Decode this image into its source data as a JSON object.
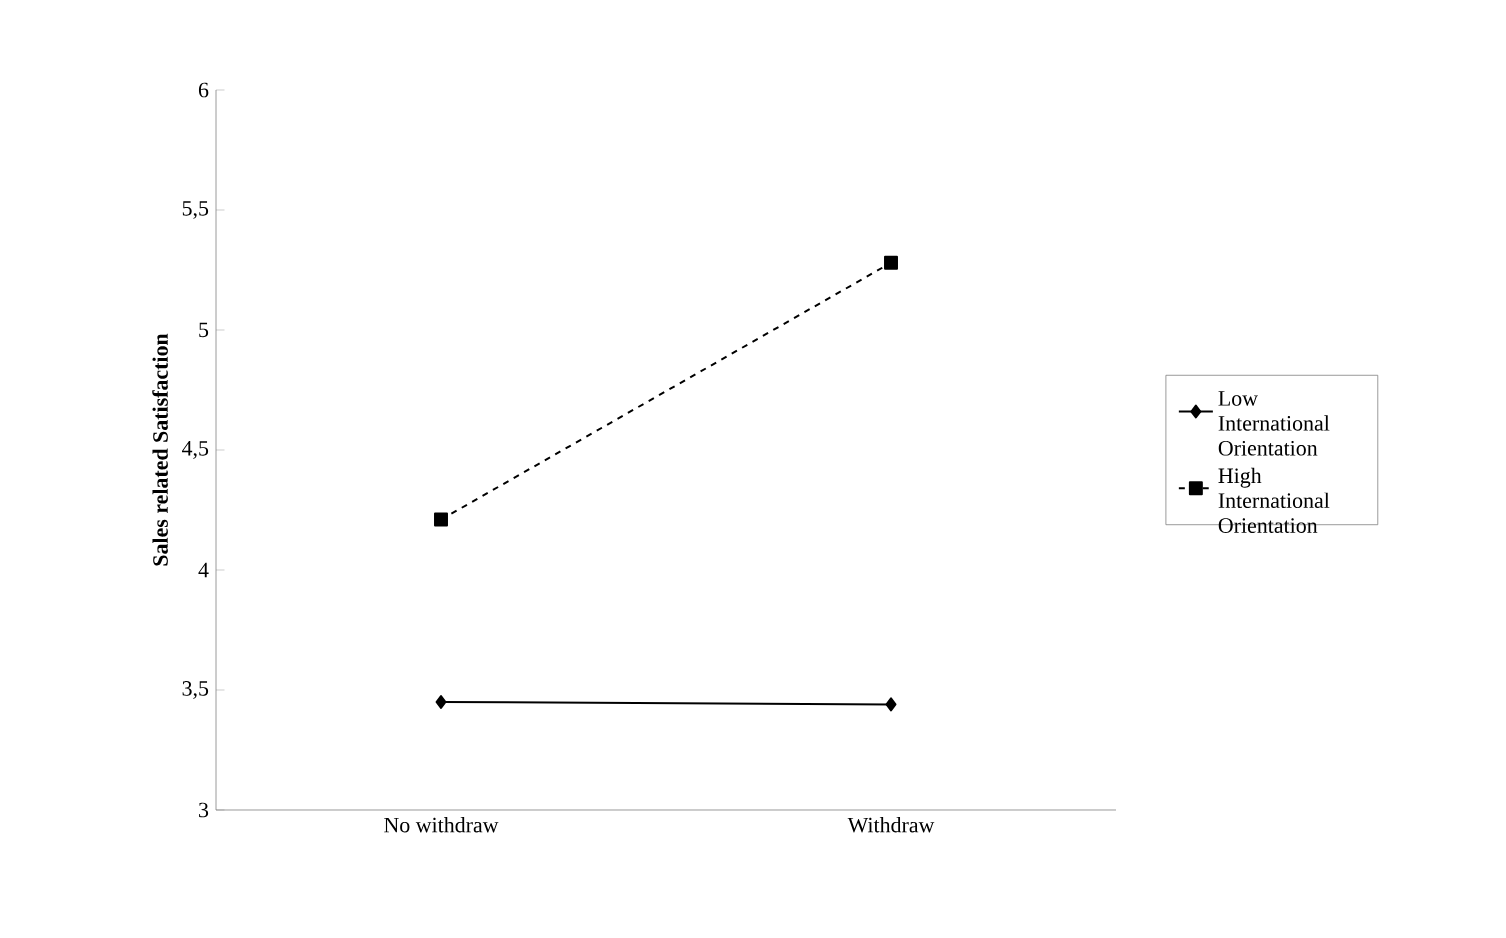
{
  "chart_data": {
    "type": "line",
    "ylabel": "Sales related Satisfaction",
    "categories": [
      "No withdraw",
      "Withdraw"
    ],
    "series": [
      {
        "name": "Low International Orientation",
        "color": "#000000",
        "values": [
          3.45,
          3.44
        ],
        "marker": "diamond",
        "line_style": "solid"
      },
      {
        "name": "High International Orientation",
        "color": "#000000",
        "values": [
          4.21,
          5.28
        ],
        "marker": "square",
        "line_style": "dashed"
      }
    ],
    "ylim": [
      3,
      6
    ],
    "yticks": [
      3,
      {
        "value": 3.5,
        "label": "3,5"
      },
      4,
      {
        "value": 4.5,
        "label": "4,5"
      },
      5,
      {
        "value": 5.5,
        "label": "5,5"
      },
      6
    ],
    "legend": "right",
    "grid": false
  }
}
